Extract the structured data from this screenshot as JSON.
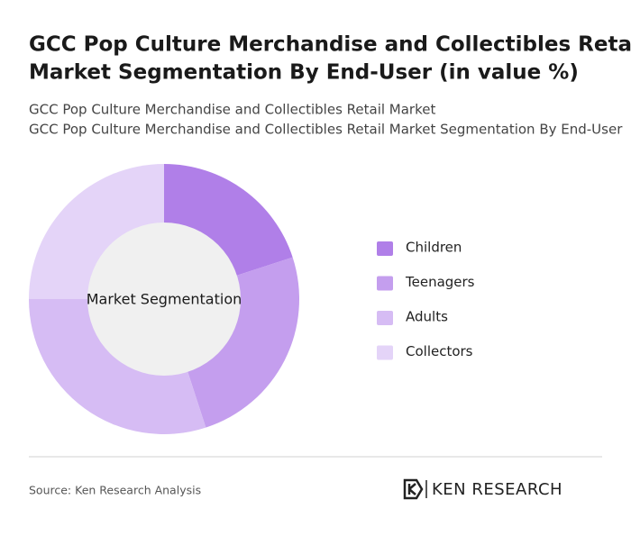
{
  "chart_data": {
    "type": "donut",
    "title": [
      "GCC Pop Culture Merchandise and Collectibles Retail",
      "Market Segmentation By End-User (in value %)"
    ],
    "subtitle": [
      "GCC Pop Culture Merchandise and Collectibles Retail Market",
      "GCC Pop Culture Merchandise and Collectibles Retail Market Segmentation By End-User"
    ],
    "center_label": "Market Segmentation",
    "categories": [
      "Children",
      "Teenagers",
      "Adults",
      "Collectors"
    ],
    "values": [
      20,
      25,
      30,
      25
    ],
    "colors": [
      "#b07fe8",
      "#c49eee",
      "#d6bcf4",
      "#e4d4f8"
    ],
    "source": "Source: Ken Research Analysis",
    "logo": "KEN RESEARCH"
  }
}
